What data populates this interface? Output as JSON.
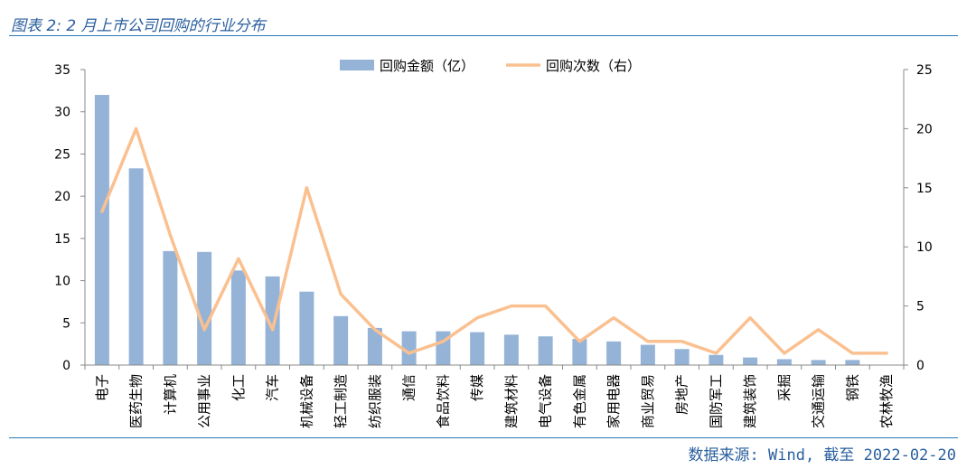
{
  "header": {
    "title": "图表 2: 2 月上市公司回购的行业分布"
  },
  "footer": {
    "source": "数据来源: Wind, 截至 2022-02-20"
  },
  "chart_data": {
    "type": "bar",
    "categories": [
      "电子",
      "医药生物",
      "计算机",
      "公用事业",
      "化工",
      "汽车",
      "机械设备",
      "轻工制造",
      "纺织服装",
      "通信",
      "食品饮料",
      "传媒",
      "建筑材料",
      "电气设备",
      "有色金属",
      "家用电器",
      "商业贸易",
      "房地产",
      "国防军工",
      "建筑装饰",
      "采掘",
      "交通运输",
      "钢铁",
      "农林牧渔"
    ],
    "series": [
      {
        "name": "回购金额（亿）",
        "type": "bar",
        "axis": "left",
        "color": "#95b3d7",
        "values": [
          32.0,
          23.3,
          13.5,
          13.4,
          11.2,
          10.5,
          8.7,
          5.8,
          4.4,
          4.0,
          4.0,
          3.9,
          3.6,
          3.4,
          3.1,
          2.8,
          2.4,
          1.9,
          1.2,
          0.9,
          0.7,
          0.6,
          0.6,
          0
        ]
      },
      {
        "name": "回购次数（右）",
        "type": "line",
        "axis": "right",
        "color": "#fac090",
        "values": [
          13,
          20,
          11,
          3,
          9,
          3,
          15,
          6,
          3,
          1,
          2,
          4,
          5,
          5,
          2,
          4,
          2,
          2,
          1,
          4,
          1,
          3,
          1,
          1
        ]
      }
    ],
    "ylim": [
      0,
      35
    ],
    "yticks": [
      "0",
      "5",
      "10",
      "15",
      "20",
      "25",
      "30",
      "35"
    ],
    "y2lim": [
      0,
      25
    ],
    "y2ticks": [
      "0",
      "5",
      "10",
      "15",
      "20",
      "25"
    ],
    "legend": "top-center",
    "grid": false
  }
}
